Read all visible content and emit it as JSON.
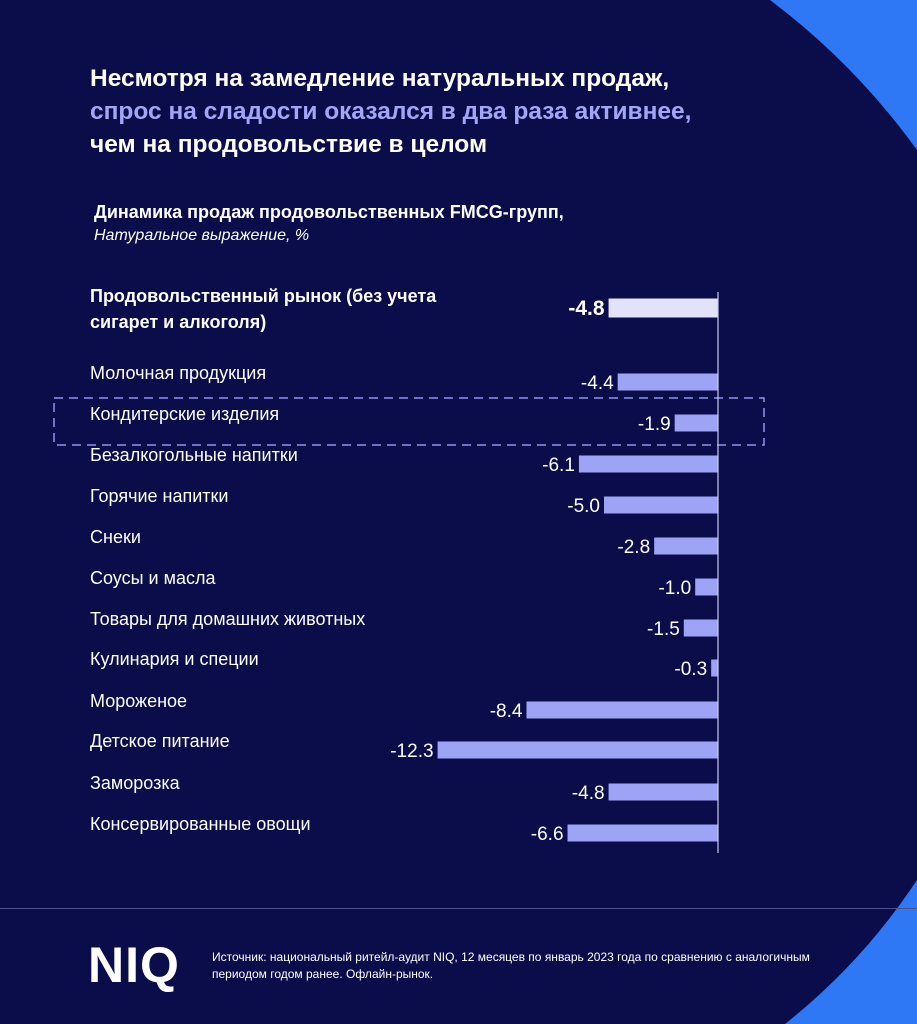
{
  "headline": {
    "line1": "Несмотря на замедление натуральных продаж,",
    "line2": "спрос на сладости оказался в два раза активнее,",
    "line3": "чем на продовольствие в целом"
  },
  "colors": {
    "background": "#0b0d4a",
    "accent": "#a3a6f5",
    "bar": "#9fa3f6",
    "total_bar": "#e2e3fb",
    "corner_shape": "#2e78f5"
  },
  "chart_data": {
    "type": "bar",
    "orientation": "horizontal",
    "title": "Динамика продаж продовольственных FMCG-групп,",
    "subtitle": "Натуральное выражение, %",
    "categories": [
      "Продовольственный рынок (без учета сигарет и алкоголя)",
      "Молочная продукция",
      "Кондитерские изделия",
      "Безалкогольные напитки",
      "Горячие напитки",
      "Снеки",
      "Соусы и масла",
      "Товары для домашних животных",
      "Кулинария и специи",
      "Мороженое",
      "Детское питание",
      "Заморозка",
      "Консервированные овощи"
    ],
    "values": [
      -4.8,
      -4.4,
      -1.9,
      -6.1,
      -5.0,
      -2.8,
      -1.0,
      -1.5,
      -0.3,
      -8.4,
      -12.3,
      -4.8,
      -6.6
    ],
    "labels": [
      "-4.8",
      "-4.4",
      "-1.9",
      "-6.1",
      "-5.0",
      "-2.8",
      "-1.0",
      "-1.5",
      "-0.3",
      "-8.4",
      "-12.3",
      "-4.8",
      "-6.6"
    ],
    "highlighted_index": 0,
    "boxed_index": 2,
    "xlim": [
      -12.3,
      0
    ]
  },
  "footer": {
    "logo": "NIQ",
    "source": "Источник: национальный ритейл-аудит NIQ, 12 месяцев по январь 2023 года по сравнению с аналогичным периодом годом ранее. Офлайн-рынок."
  }
}
